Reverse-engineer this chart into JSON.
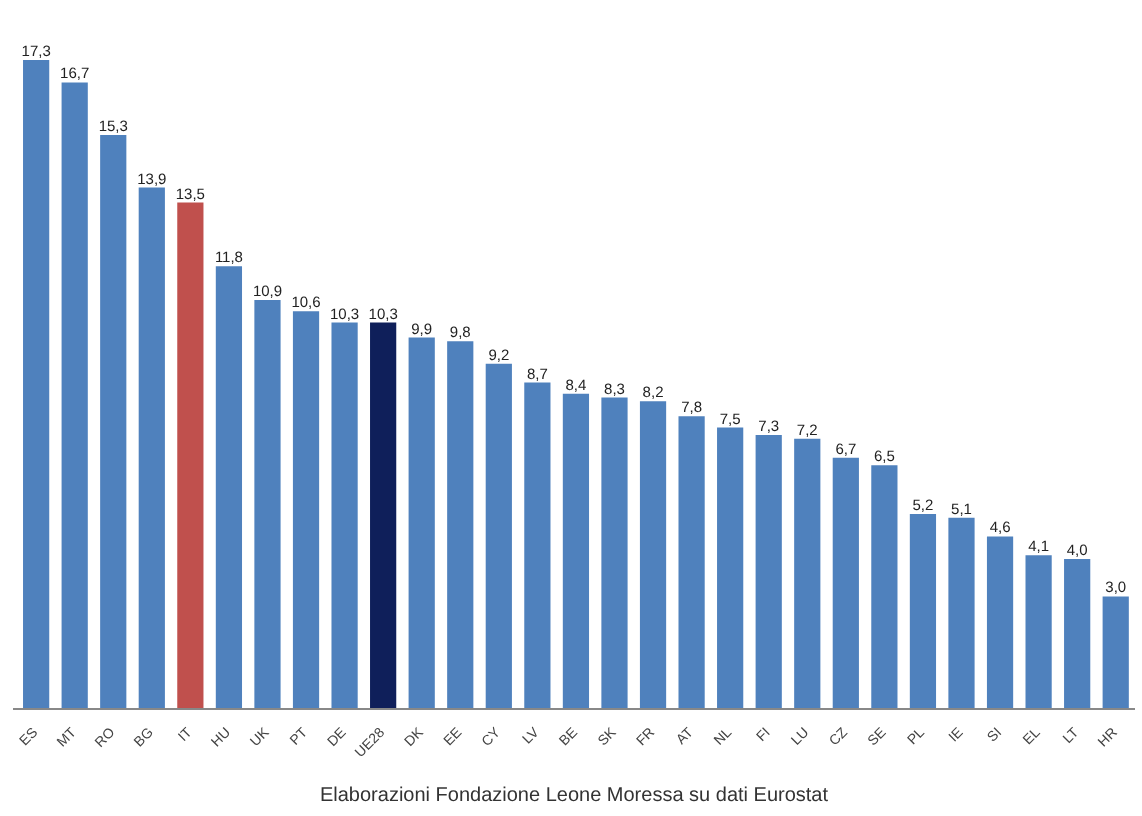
{
  "chart_data": {
    "type": "bar",
    "categories": [
      "ES",
      "MT",
      "RO",
      "BG",
      "IT",
      "HU",
      "UK",
      "PT",
      "DE",
      "UE28",
      "DK",
      "EE",
      "CY",
      "LV",
      "BE",
      "SK",
      "FR",
      "AT",
      "NL",
      "FI",
      "LU",
      "CZ",
      "SE",
      "PL",
      "IE",
      "SI",
      "EL",
      "LT",
      "HR"
    ],
    "values": [
      17.3,
      16.7,
      15.3,
      13.9,
      13.5,
      11.8,
      10.9,
      10.6,
      10.3,
      10.3,
      9.9,
      9.8,
      9.2,
      8.7,
      8.4,
      8.3,
      8.2,
      7.8,
      7.5,
      7.3,
      7.2,
      6.7,
      6.5,
      5.2,
      5.1,
      4.6,
      4.1,
      4.0,
      3.0
    ],
    "colors": [
      "#4f81bd",
      "#4f81bd",
      "#4f81bd",
      "#4f81bd",
      "#c0504d",
      "#4f81bd",
      "#4f81bd",
      "#4f81bd",
      "#4f81bd",
      "#0f1f5a",
      "#4f81bd",
      "#4f81bd",
      "#4f81bd",
      "#4f81bd",
      "#4f81bd",
      "#4f81bd",
      "#4f81bd",
      "#4f81bd",
      "#4f81bd",
      "#4f81bd",
      "#4f81bd",
      "#4f81bd",
      "#4f81bd",
      "#4f81bd",
      "#4f81bd",
      "#4f81bd",
      "#4f81bd",
      "#4f81bd",
      "#4f81bd"
    ],
    "value_labels": [
      "17,3",
      "16,7",
      "15,3",
      "13,9",
      "13,5",
      "11,8",
      "10,9",
      "10,6",
      "10,3",
      "10,3",
      "9,9",
      "9,8",
      "9,2",
      "8,7",
      "8,4",
      "8,3",
      "8,2",
      "7,8",
      "7,5",
      "7,3",
      "7,2",
      "6,7",
      "6,5",
      "5,2",
      "5,1",
      "4,6",
      "4,1",
      "4,0",
      "3,0"
    ],
    "annotations": [
      "Elaborazioni Fondazione Leone Moressa su dati Eurostat"
    ],
    "grid": false
  }
}
